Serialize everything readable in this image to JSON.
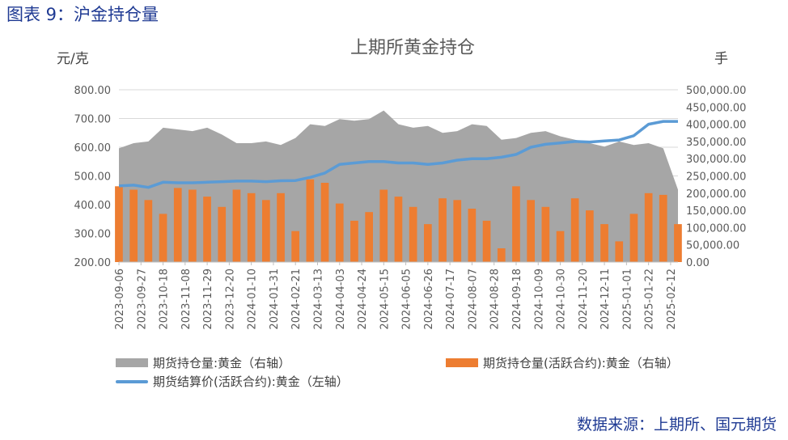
{
  "figure_caption": "图表 9：沪金持仓量",
  "source": "数据来源：上期所、国元期货",
  "chart_data": {
    "type": "bar",
    "title": "上期所黄金持仓",
    "left_axis_unit": "元/克",
    "right_axis_unit": "手",
    "left_ylim": [
      200,
      800
    ],
    "right_ylim": [
      0,
      500000
    ],
    "left_ticks": [
      "200.00",
      "300.00",
      "400.00",
      "500.00",
      "600.00",
      "700.00",
      "800.00"
    ],
    "right_ticks": [
      "0.00",
      "50,000.00",
      "100,000.00",
      "150,000.00",
      "200,000.00",
      "250,000.00",
      "300,000.00",
      "350,000.00",
      "400,000.00",
      "450,000.00",
      "500,000.00"
    ],
    "x_tick_labels": [
      "2023-09-06",
      "2023-09-27",
      "2023-10-18",
      "2023-11-08",
      "2023-11-29",
      "2023-12-20",
      "2024-01-10",
      "2024-01-31",
      "2024-02-21",
      "2024-03-13",
      "2024-04-03",
      "2024-04-24",
      "2024-05-15",
      "2024-06-05",
      "2024-06-26",
      "2024-07-17",
      "2024-08-07",
      "2024-08-28",
      "2024-09-18",
      "2024-10-09",
      "2024-10-30",
      "2024-11-20",
      "2024-12-11",
      "2025-01-01",
      "2025-01-22",
      "2025-02-12"
    ],
    "x_dates": [
      "2023-09-06",
      "2023-09-20",
      "2023-10-04",
      "2023-10-18",
      "2023-11-01",
      "2023-11-15",
      "2023-11-29",
      "2023-12-13",
      "2023-12-27",
      "2024-01-10",
      "2024-01-24",
      "2024-02-07",
      "2024-02-21",
      "2024-03-06",
      "2024-03-20",
      "2024-04-03",
      "2024-04-17",
      "2024-05-01",
      "2024-05-15",
      "2024-05-29",
      "2024-06-12",
      "2024-06-26",
      "2024-07-10",
      "2024-07-24",
      "2024-08-07",
      "2024-08-21",
      "2024-09-04",
      "2024-09-18",
      "2024-10-02",
      "2024-10-16",
      "2024-10-30",
      "2024-11-13",
      "2024-11-27",
      "2024-12-11",
      "2024-12-25",
      "2025-01-08",
      "2025-01-22",
      "2025-02-05",
      "2025-02-19"
    ],
    "grid": true,
    "legend_position": "bottom",
    "series": [
      {
        "name": "期货持仓量:黄金（右轴）",
        "kind": "area",
        "axis": "right",
        "color": "#a6a6a6",
        "values": [
          330000,
          345000,
          350000,
          390000,
          385000,
          380000,
          390000,
          370000,
          345000,
          345000,
          350000,
          340000,
          360000,
          400000,
          395000,
          415000,
          410000,
          415000,
          440000,
          400000,
          390000,
          395000,
          375000,
          380000,
          400000,
          395000,
          355000,
          360000,
          375000,
          380000,
          365000,
          355000,
          345000,
          335000,
          350000,
          340000,
          345000,
          330000,
          210000
        ]
      },
      {
        "name": "期货持仓量(活跃合约):黄金（右轴）",
        "kind": "bar",
        "axis": "right",
        "color": "#ed7d31",
        "values": [
          220000,
          210000,
          180000,
          140000,
          215000,
          210000,
          190000,
          160000,
          210000,
          200000,
          180000,
          200000,
          90000,
          240000,
          230000,
          170000,
          120000,
          145000,
          210000,
          190000,
          160000,
          110000,
          185000,
          180000,
          155000,
          120000,
          40000,
          220000,
          180000,
          160000,
          90000,
          185000,
          150000,
          110000,
          60000,
          140000,
          200000,
          195000,
          110000
        ]
      },
      {
        "name": "期货结算价(活跃合约):黄金（左轴）",
        "kind": "line",
        "axis": "left",
        "color": "#5b9bd5",
        "values": [
          465,
          468,
          460,
          478,
          476,
          476,
          478,
          480,
          482,
          482,
          480,
          483,
          484,
          495,
          510,
          540,
          545,
          550,
          550,
          545,
          545,
          540,
          545,
          555,
          560,
          560,
          565,
          575,
          600,
          610,
          615,
          620,
          618,
          622,
          625,
          640,
          680,
          690,
          690
        ]
      }
    ]
  }
}
